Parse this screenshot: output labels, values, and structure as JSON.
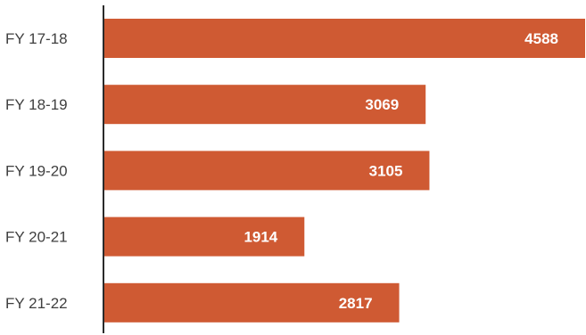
{
  "chart_data": {
    "type": "bar",
    "orientation": "horizontal",
    "categories": [
      "FY 17-18",
      "FY 18-19",
      "FY 19-20",
      "FY 20-21",
      "FY 21-22"
    ],
    "values": [
      4588,
      3069,
      3105,
      1914,
      2817
    ],
    "data_labels": [
      "4588",
      "3069",
      "3105",
      "1914",
      "2817"
    ],
    "xlim": [
      0,
      4588
    ],
    "grid": false,
    "legend": "none",
    "colors": {
      "bar": "#cf5a33",
      "axis": "#2b2b2b",
      "category_text": "#404040",
      "label_text": "#ffffff",
      "background": "#ffffff"
    }
  }
}
